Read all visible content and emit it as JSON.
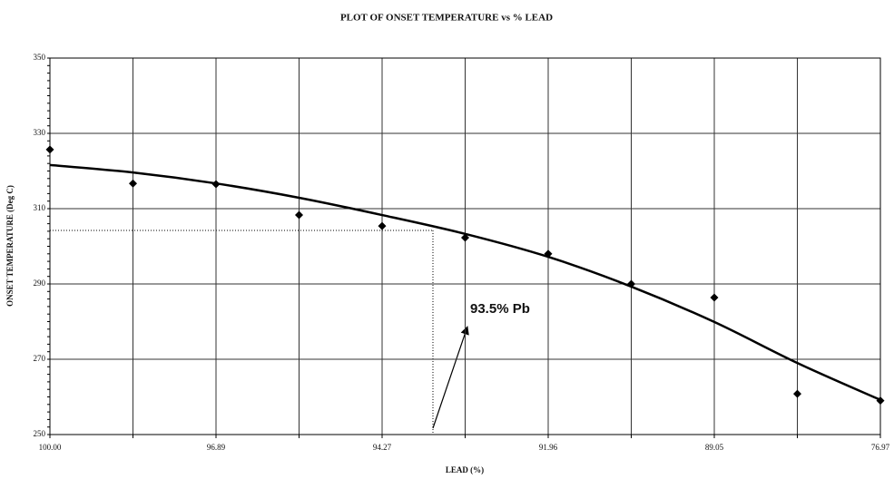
{
  "chart_data": {
    "type": "scatter",
    "title": "PLOT OF ONSET TEMPERATURE vs % LEAD",
    "x_label": "LEAD (%)",
    "y_label": "ONSET TEMPERATURE (Deg C)",
    "annotation": "93.5% Pb",
    "categories": [
      "100.00",
      null,
      "96.89",
      null,
      "94.27",
      null,
      "91.96",
      null,
      "89.05",
      null,
      "76.97"
    ],
    "series": [
      {
        "type": "scatter",
        "color": "#000000",
        "values": [
          325.7,
          316.7,
          316.5,
          308.3,
          305.4,
          302.3,
          298,
          290,
          286.4,
          260.8,
          259
        ]
      },
      {
        "type": "line",
        "color": "#000000",
        "values": [
          321.6,
          319.6,
          316.7,
          312.9,
          308.3,
          303.3,
          297.2,
          289.3,
          279.9,
          269,
          259.2
        ]
      }
    ],
    "ylim": [
      250,
      350
    ],
    "yticks": [
      250,
      270,
      290,
      310,
      330,
      350
    ],
    "grid": true
  }
}
